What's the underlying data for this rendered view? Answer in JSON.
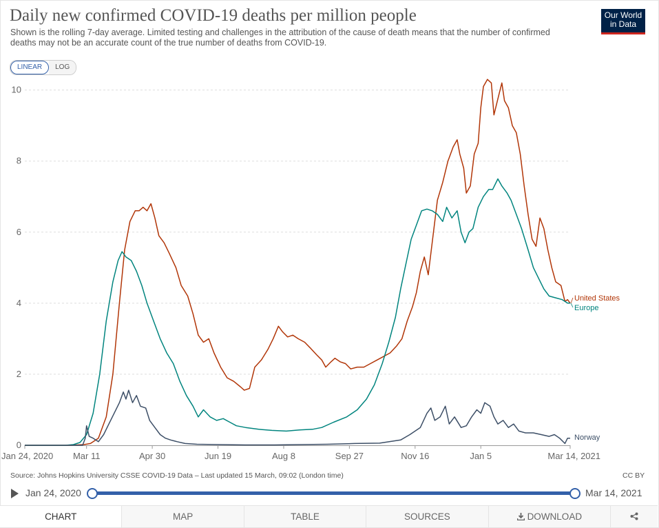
{
  "header": {
    "title": "Daily new confirmed COVID-19 deaths per million people",
    "subtitle": "Shown is the rolling 7-day average. Limited testing and challenges in the attribution of the cause of death means that the number of confirmed deaths may not be an accurate count of the true number of deaths from COVID-19.",
    "logo_line1": "Our World",
    "logo_line2": "in Data"
  },
  "controls": {
    "linear_label": "LINEAR",
    "log_label": "LOG"
  },
  "footer": {
    "source": "Source: Johns Hopkins University CSSE COVID-19 Data – Last updated 15 March, 09:02 (London time)",
    "license": "CC BY"
  },
  "timeline": {
    "start_label": "Jan 24, 2020",
    "end_label": "Mar 14, 2021"
  },
  "tabs": {
    "chart": "CHART",
    "map": "MAP",
    "table": "TABLE",
    "sources": "SOURCES",
    "download": "DOWNLOAD",
    "share_icon": "share-icon",
    "download_icon": "download-icon"
  },
  "colors": {
    "united_states": "#b13507",
    "europe": "#00847e",
    "norway": "#3c4e66",
    "grid": "#dddddd",
    "accent": "#3360a9"
  },
  "chart_data": {
    "type": "line",
    "y_axis": {
      "min": 0,
      "max": 10.4,
      "ticks": [
        0,
        2,
        4,
        6,
        8,
        10
      ]
    },
    "x_axis": {
      "start": "2020-01-24",
      "end": "2021-03-14",
      "ticks": [
        {
          "date": "2020-01-24",
          "label": "Jan 24, 2020"
        },
        {
          "date": "2020-03-11",
          "label": "Mar 11"
        },
        {
          "date": "2020-04-30",
          "label": "Apr 30"
        },
        {
          "date": "2020-06-19",
          "label": "Jun 19"
        },
        {
          "date": "2020-08-08",
          "label": "Aug 8"
        },
        {
          "date": "2020-09-27",
          "label": "Sep 27"
        },
        {
          "date": "2020-11-16",
          "label": "Nov 16"
        },
        {
          "date": "2021-01-05",
          "label": "Jan 5"
        },
        {
          "date": "2021-03-14",
          "label": "Mar 14, 2021"
        }
      ]
    },
    "grid": true,
    "legend_placement": "right-end-labels",
    "series": [
      {
        "name": "United States",
        "color": "#b13507",
        "points": [
          [
            "2020-01-24",
            0
          ],
          [
            "2020-02-28",
            0
          ],
          [
            "2020-03-09",
            0.02
          ],
          [
            "2020-03-14",
            0.05
          ],
          [
            "2020-03-20",
            0.2
          ],
          [
            "2020-03-26",
            0.8
          ],
          [
            "2020-03-31",
            2.0
          ],
          [
            "2020-04-05",
            4.0
          ],
          [
            "2020-04-09",
            5.5
          ],
          [
            "2020-04-13",
            6.3
          ],
          [
            "2020-04-17",
            6.6
          ],
          [
            "2020-04-20",
            6.6
          ],
          [
            "2020-04-23",
            6.7
          ],
          [
            "2020-04-26",
            6.6
          ],
          [
            "2020-04-29",
            6.8
          ],
          [
            "2020-05-02",
            6.4
          ],
          [
            "2020-05-05",
            5.9
          ],
          [
            "2020-05-09",
            5.7
          ],
          [
            "2020-05-13",
            5.4
          ],
          [
            "2020-05-18",
            5.0
          ],
          [
            "2020-05-22",
            4.5
          ],
          [
            "2020-05-27",
            4.2
          ],
          [
            "2020-05-31",
            3.7
          ],
          [
            "2020-06-04",
            3.1
          ],
          [
            "2020-06-08",
            2.9
          ],
          [
            "2020-06-12",
            3.0
          ],
          [
            "2020-06-16",
            2.6
          ],
          [
            "2020-06-21",
            2.2
          ],
          [
            "2020-06-26",
            1.9
          ],
          [
            "2020-07-01",
            1.8
          ],
          [
            "2020-07-06",
            1.65
          ],
          [
            "2020-07-09",
            1.55
          ],
          [
            "2020-07-13",
            1.6
          ],
          [
            "2020-07-17",
            2.2
          ],
          [
            "2020-07-22",
            2.4
          ],
          [
            "2020-07-27",
            2.7
          ],
          [
            "2020-07-31",
            3.0
          ],
          [
            "2020-08-04",
            3.35
          ],
          [
            "2020-08-07",
            3.2
          ],
          [
            "2020-08-11",
            3.05
          ],
          [
            "2020-08-15",
            3.1
          ],
          [
            "2020-08-19",
            3.0
          ],
          [
            "2020-08-24",
            2.9
          ],
          [
            "2020-08-28",
            2.75
          ],
          [
            "2020-09-02",
            2.55
          ],
          [
            "2020-09-06",
            2.4
          ],
          [
            "2020-09-09",
            2.2
          ],
          [
            "2020-09-13",
            2.35
          ],
          [
            "2020-09-16",
            2.45
          ],
          [
            "2020-09-20",
            2.35
          ],
          [
            "2020-09-24",
            2.3
          ],
          [
            "2020-09-28",
            2.15
          ],
          [
            "2020-10-03",
            2.2
          ],
          [
            "2020-10-08",
            2.2
          ],
          [
            "2020-10-13",
            2.3
          ],
          [
            "2020-10-18",
            2.4
          ],
          [
            "2020-10-23",
            2.5
          ],
          [
            "2020-10-28",
            2.6
          ],
          [
            "2020-11-02",
            2.8
          ],
          [
            "2020-11-06",
            3.0
          ],
          [
            "2020-11-10",
            3.5
          ],
          [
            "2020-11-14",
            3.9
          ],
          [
            "2020-11-17",
            4.3
          ],
          [
            "2020-11-20",
            4.9
          ],
          [
            "2020-11-23",
            5.3
          ],
          [
            "2020-11-26",
            4.8
          ],
          [
            "2020-11-29",
            5.7
          ],
          [
            "2020-12-03",
            6.9
          ],
          [
            "2020-12-07",
            7.4
          ],
          [
            "2020-12-11",
            8.0
          ],
          [
            "2020-12-15",
            8.4
          ],
          [
            "2020-12-18",
            8.6
          ],
          [
            "2020-12-20",
            8.2
          ],
          [
            "2020-12-23",
            7.8
          ],
          [
            "2020-12-25",
            7.1
          ],
          [
            "2020-12-28",
            7.3
          ],
          [
            "2020-12-31",
            8.2
          ],
          [
            "2021-01-03",
            8.5
          ],
          [
            "2021-01-05",
            9.5
          ],
          [
            "2021-01-07",
            10.1
          ],
          [
            "2021-01-10",
            10.3
          ],
          [
            "2021-01-13",
            10.2
          ],
          [
            "2021-01-15",
            9.3
          ],
          [
            "2021-01-17",
            9.6
          ],
          [
            "2021-01-19",
            9.9
          ],
          [
            "2021-01-21",
            10.2
          ],
          [
            "2021-01-23",
            9.7
          ],
          [
            "2021-01-26",
            9.5
          ],
          [
            "2021-01-29",
            9.0
          ],
          [
            "2021-02-01",
            8.8
          ],
          [
            "2021-02-04",
            8.2
          ],
          [
            "2021-02-07",
            7.3
          ],
          [
            "2021-02-10",
            6.5
          ],
          [
            "2021-02-13",
            5.8
          ],
          [
            "2021-02-16",
            5.6
          ],
          [
            "2021-02-19",
            6.4
          ],
          [
            "2021-02-22",
            6.1
          ],
          [
            "2021-02-25",
            5.5
          ],
          [
            "2021-02-28",
            5.0
          ],
          [
            "2021-03-03",
            4.6
          ],
          [
            "2021-03-07",
            4.5
          ],
          [
            "2021-03-10",
            4.05
          ],
          [
            "2021-03-12",
            4.1
          ],
          [
            "2021-03-14",
            4.0
          ]
        ]
      },
      {
        "name": "Europe",
        "color": "#00847e",
        "points": [
          [
            "2020-01-24",
            0
          ],
          [
            "2020-02-24",
            0
          ],
          [
            "2020-03-01",
            0.02
          ],
          [
            "2020-03-06",
            0.08
          ],
          [
            "2020-03-11",
            0.3
          ],
          [
            "2020-03-16",
            0.9
          ],
          [
            "2020-03-21",
            2.0
          ],
          [
            "2020-03-26",
            3.5
          ],
          [
            "2020-03-31",
            4.6
          ],
          [
            "2020-04-04",
            5.2
          ],
          [
            "2020-04-07",
            5.45
          ],
          [
            "2020-04-10",
            5.3
          ],
          [
            "2020-04-14",
            5.2
          ],
          [
            "2020-04-18",
            4.9
          ],
          [
            "2020-04-22",
            4.5
          ],
          [
            "2020-04-26",
            4.0
          ],
          [
            "2020-05-01",
            3.5
          ],
          [
            "2020-05-06",
            3.0
          ],
          [
            "2020-05-11",
            2.6
          ],
          [
            "2020-05-16",
            2.3
          ],
          [
            "2020-05-21",
            1.8
          ],
          [
            "2020-05-26",
            1.4
          ],
          [
            "2020-05-31",
            1.1
          ],
          [
            "2020-06-04",
            0.8
          ],
          [
            "2020-06-08",
            1.0
          ],
          [
            "2020-06-13",
            0.8
          ],
          [
            "2020-06-18",
            0.7
          ],
          [
            "2020-06-23",
            0.75
          ],
          [
            "2020-06-28",
            0.65
          ],
          [
            "2020-07-03",
            0.55
          ],
          [
            "2020-07-10",
            0.5
          ],
          [
            "2020-07-20",
            0.45
          ],
          [
            "2020-07-30",
            0.42
          ],
          [
            "2020-08-10",
            0.4
          ],
          [
            "2020-08-20",
            0.43
          ],
          [
            "2020-08-30",
            0.45
          ],
          [
            "2020-09-06",
            0.5
          ],
          [
            "2020-09-15",
            0.65
          ],
          [
            "2020-09-25",
            0.8
          ],
          [
            "2020-10-03",
            1.0
          ],
          [
            "2020-10-10",
            1.3
          ],
          [
            "2020-10-16",
            1.7
          ],
          [
            "2020-10-22",
            2.3
          ],
          [
            "2020-10-27",
            2.9
          ],
          [
            "2020-11-01",
            3.6
          ],
          [
            "2020-11-05",
            4.4
          ],
          [
            "2020-11-09",
            5.1
          ],
          [
            "2020-11-13",
            5.8
          ],
          [
            "2020-11-17",
            6.2
          ],
          [
            "2020-11-21",
            6.6
          ],
          [
            "2020-11-25",
            6.65
          ],
          [
            "2020-11-29",
            6.6
          ],
          [
            "2020-12-03",
            6.5
          ],
          [
            "2020-12-07",
            6.3
          ],
          [
            "2020-12-10",
            6.7
          ],
          [
            "2020-12-14",
            6.4
          ],
          [
            "2020-12-18",
            6.6
          ],
          [
            "2020-12-21",
            6.0
          ],
          [
            "2020-12-24",
            5.7
          ],
          [
            "2020-12-27",
            6.0
          ],
          [
            "2020-12-30",
            6.1
          ],
          [
            "2021-01-03",
            6.7
          ],
          [
            "2021-01-07",
            7.0
          ],
          [
            "2021-01-11",
            7.2
          ],
          [
            "2021-01-14",
            7.2
          ],
          [
            "2021-01-18",
            7.5
          ],
          [
            "2021-01-21",
            7.3
          ],
          [
            "2021-01-25",
            7.1
          ],
          [
            "2021-01-28",
            6.9
          ],
          [
            "2021-02-01",
            6.5
          ],
          [
            "2021-02-05",
            6.1
          ],
          [
            "2021-02-10",
            5.5
          ],
          [
            "2021-02-14",
            5.0
          ],
          [
            "2021-02-18",
            4.7
          ],
          [
            "2021-02-22",
            4.4
          ],
          [
            "2021-02-26",
            4.2
          ],
          [
            "2021-03-03",
            4.15
          ],
          [
            "2021-03-08",
            4.1
          ],
          [
            "2021-03-12",
            4.0
          ],
          [
            "2021-03-14",
            4.0
          ]
        ]
      },
      {
        "name": "Norway",
        "color": "#3c4e66",
        "points": [
          [
            "2020-01-24",
            0
          ],
          [
            "2020-03-08",
            0
          ],
          [
            "2020-03-10",
            0.2
          ],
          [
            "2020-03-11",
            0.55
          ],
          [
            "2020-03-13",
            0.25
          ],
          [
            "2020-03-16",
            0.2
          ],
          [
            "2020-03-20",
            0.1
          ],
          [
            "2020-03-24",
            0.3
          ],
          [
            "2020-03-28",
            0.6
          ],
          [
            "2020-04-01",
            0.9
          ],
          [
            "2020-04-05",
            1.2
          ],
          [
            "2020-04-08",
            1.5
          ],
          [
            "2020-04-10",
            1.3
          ],
          [
            "2020-04-12",
            1.55
          ],
          [
            "2020-04-15",
            1.2
          ],
          [
            "2020-04-18",
            1.4
          ],
          [
            "2020-04-21",
            1.1
          ],
          [
            "2020-04-25",
            1.05
          ],
          [
            "2020-04-28",
            0.7
          ],
          [
            "2020-05-02",
            0.5
          ],
          [
            "2020-05-06",
            0.3
          ],
          [
            "2020-05-10",
            0.2
          ],
          [
            "2020-05-14",
            0.15
          ],
          [
            "2020-05-19",
            0.1
          ],
          [
            "2020-05-25",
            0.05
          ],
          [
            "2020-06-03",
            0.03
          ],
          [
            "2020-06-20",
            0.02
          ],
          [
            "2020-07-10",
            0.01
          ],
          [
            "2020-08-01",
            0.01
          ],
          [
            "2020-08-20",
            0.02
          ],
          [
            "2020-09-10",
            0.03
          ],
          [
            "2020-10-01",
            0.05
          ],
          [
            "2020-10-20",
            0.06
          ],
          [
            "2020-11-05",
            0.15
          ],
          [
            "2020-11-12",
            0.3
          ],
          [
            "2020-11-20",
            0.5
          ],
          [
            "2020-11-25",
            0.9
          ],
          [
            "2020-11-28",
            1.05
          ],
          [
            "2020-12-01",
            0.7
          ],
          [
            "2020-12-05",
            0.8
          ],
          [
            "2020-12-09",
            1.1
          ],
          [
            "2020-12-12",
            0.6
          ],
          [
            "2020-12-16",
            0.8
          ],
          [
            "2020-12-21",
            0.5
          ],
          [
            "2020-12-25",
            0.55
          ],
          [
            "2020-12-29",
            0.8
          ],
          [
            "2021-01-02",
            1.0
          ],
          [
            "2021-01-05",
            0.9
          ],
          [
            "2021-01-08",
            1.2
          ],
          [
            "2021-01-12",
            1.1
          ],
          [
            "2021-01-15",
            0.8
          ],
          [
            "2021-01-18",
            0.6
          ],
          [
            "2021-01-22",
            0.7
          ],
          [
            "2021-01-26",
            0.5
          ],
          [
            "2021-01-30",
            0.6
          ],
          [
            "2021-02-03",
            0.4
          ],
          [
            "2021-02-08",
            0.35
          ],
          [
            "2021-02-14",
            0.35
          ],
          [
            "2021-02-20",
            0.3
          ],
          [
            "2021-02-26",
            0.25
          ],
          [
            "2021-03-02",
            0.3
          ],
          [
            "2021-03-06",
            0.2
          ],
          [
            "2021-03-10",
            0.05
          ],
          [
            "2021-03-12",
            0.2
          ],
          [
            "2021-03-14",
            0.2
          ]
        ]
      }
    ]
  }
}
